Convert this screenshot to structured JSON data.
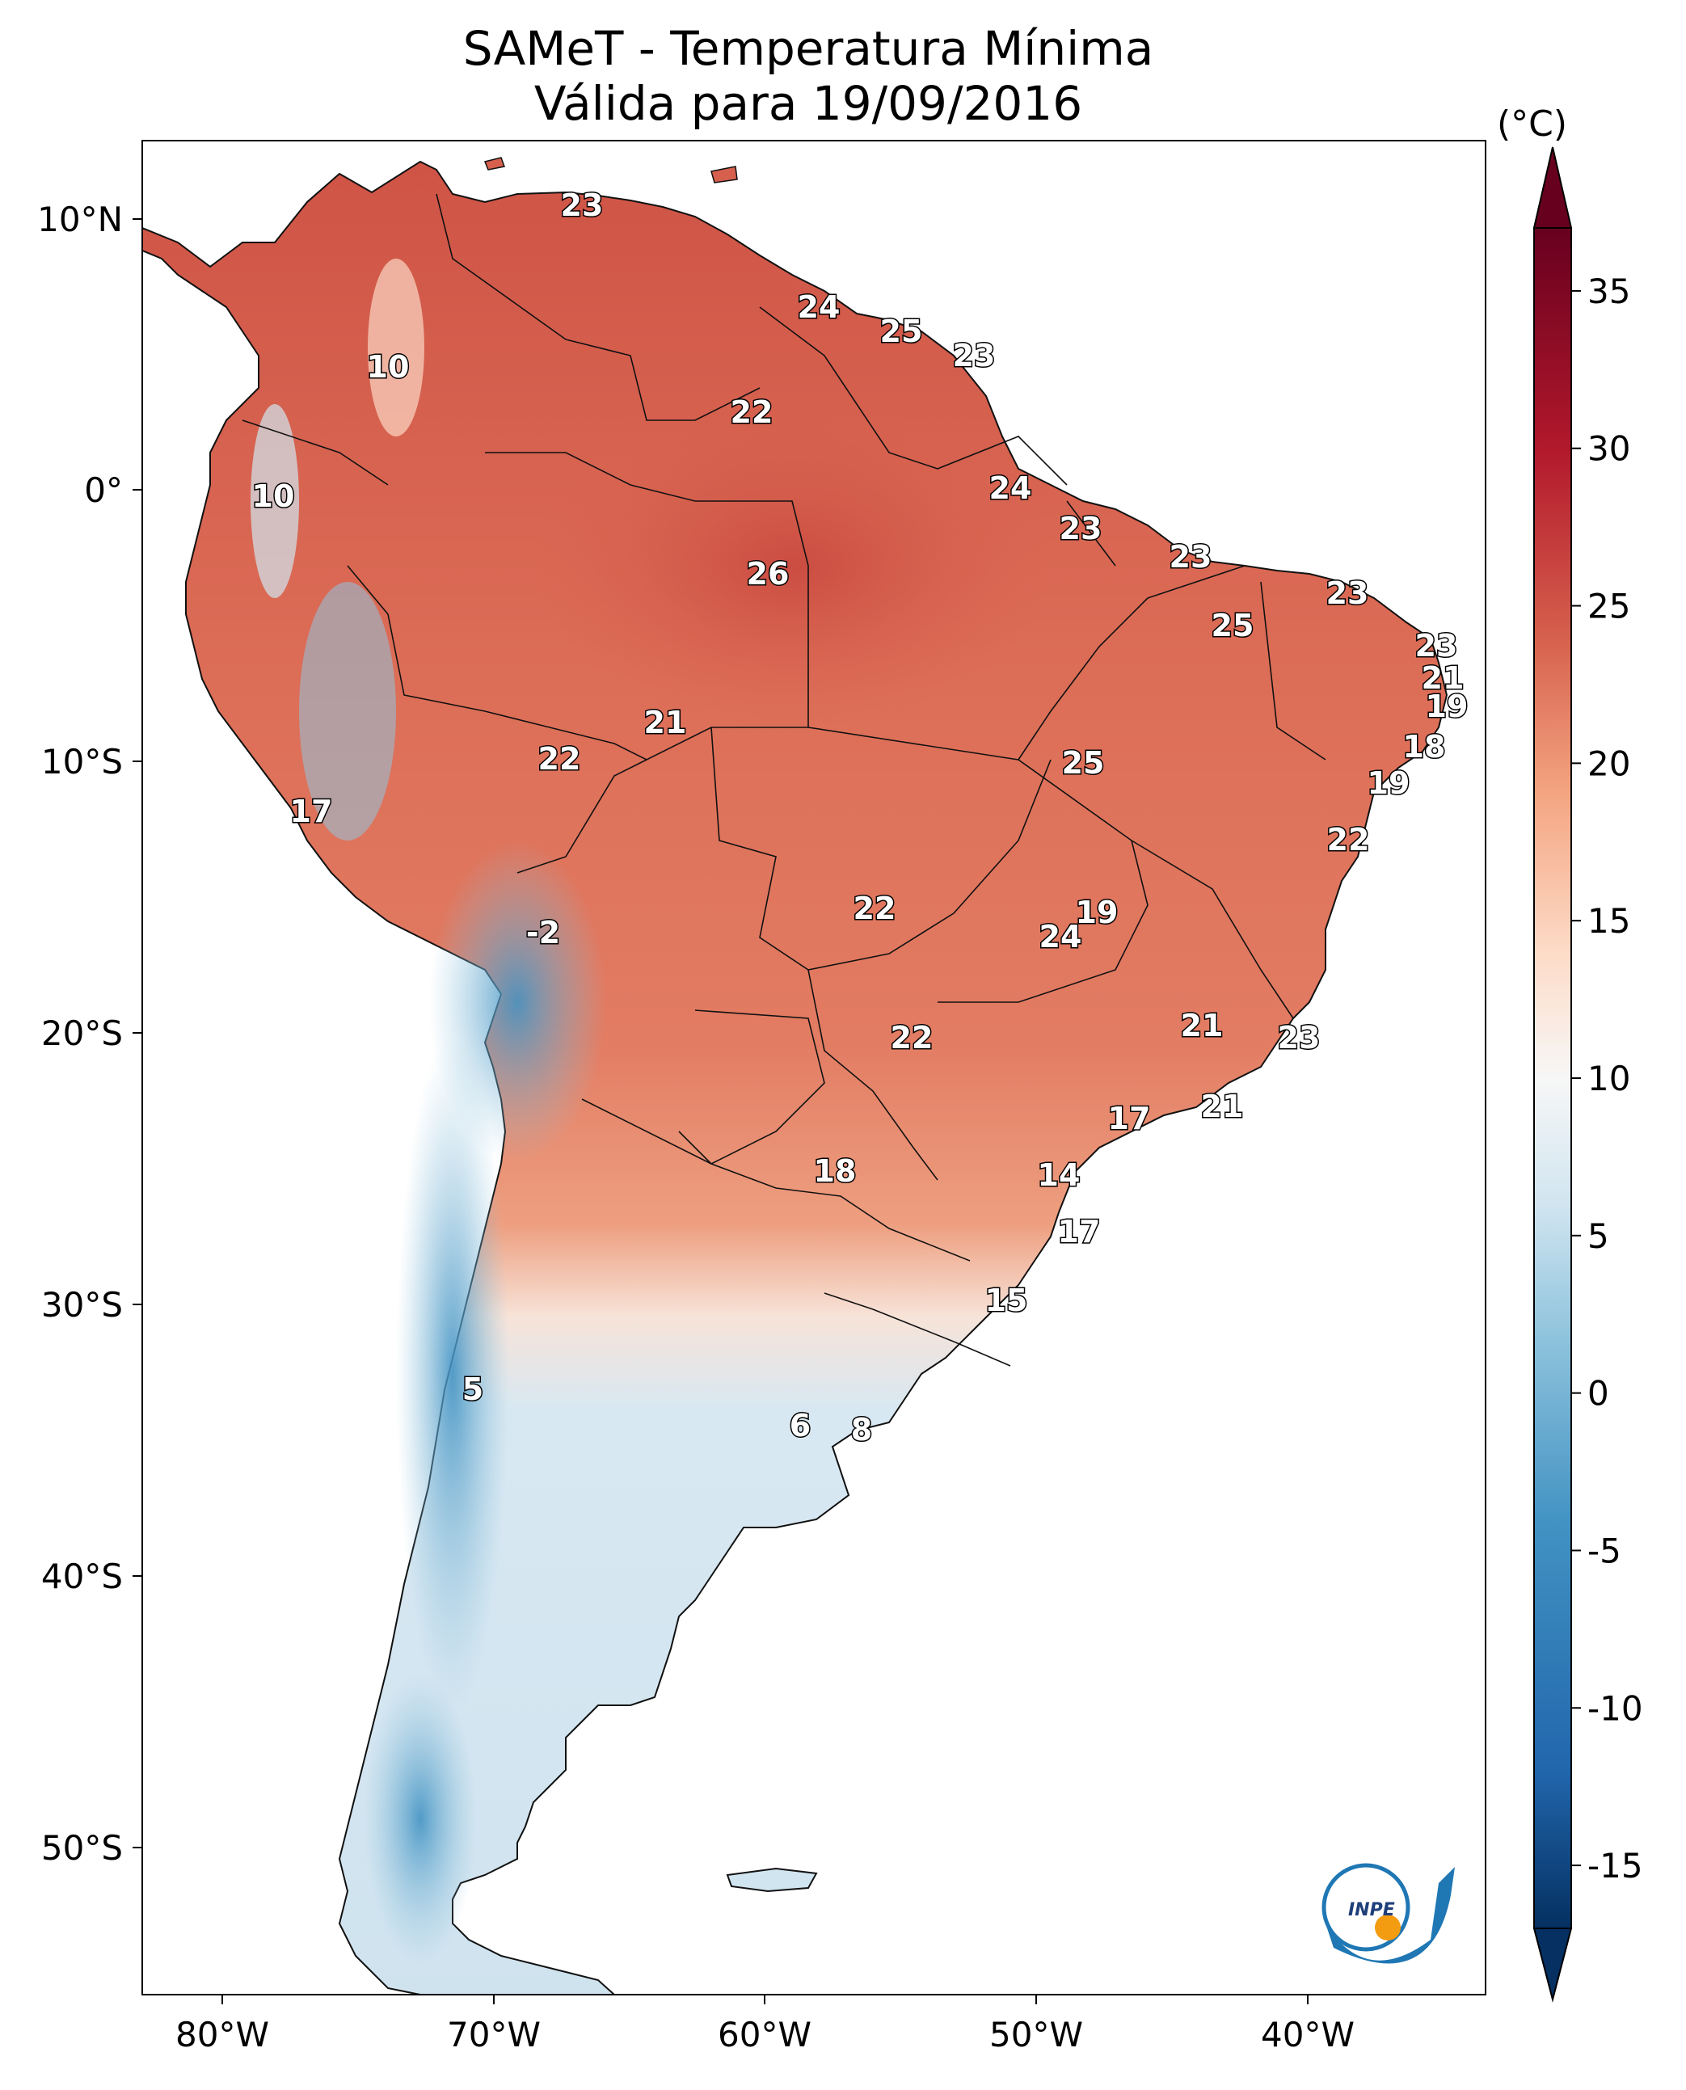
{
  "title": {
    "line1": "SAMeT - Temperatura Mínima",
    "line2": "Válida para 19/09/2016"
  },
  "colorbar": {
    "unit": "(°C)",
    "ticks": [
      "35",
      "30",
      "25",
      "20",
      "15",
      "10",
      "5",
      "0",
      "-5",
      "-10",
      "-15"
    ],
    "stops": [
      {
        "value": -17,
        "color": "#053061"
      },
      {
        "value": -12,
        "color": "#2166ac"
      },
      {
        "value": -4,
        "color": "#4393c3"
      },
      {
        "value": 2,
        "color": "#92c5de"
      },
      {
        "value": 6,
        "color": "#d1e5f0"
      },
      {
        "value": 10,
        "color": "#f7f7f7"
      },
      {
        "value": 14,
        "color": "#fddbc7"
      },
      {
        "value": 19,
        "color": "#f4a582"
      },
      {
        "value": 24,
        "color": "#d6604d"
      },
      {
        "value": 30,
        "color": "#b2182b"
      },
      {
        "value": 37,
        "color": "#67001f"
      }
    ]
  },
  "axes": {
    "lon_labels": [
      "80°W",
      "70°W",
      "60°W",
      "50°W",
      "40°W"
    ],
    "lat_labels": [
      "10°N",
      "0°",
      "10°S",
      "20°S",
      "30°S",
      "40°S",
      "50°S"
    ]
  },
  "logo": {
    "text": "INPE"
  },
  "station_labels": [
    {
      "t": "23"
    },
    {
      "t": "10"
    },
    {
      "t": "10"
    },
    {
      "t": "24"
    },
    {
      "t": "25"
    },
    {
      "t": "23"
    },
    {
      "t": "22"
    },
    {
      "t": "24"
    },
    {
      "t": "23"
    },
    {
      "t": "23"
    },
    {
      "t": "26"
    },
    {
      "t": "23"
    },
    {
      "t": "25"
    },
    {
      "t": "23"
    },
    {
      "t": "21"
    },
    {
      "t": "19"
    },
    {
      "t": "21"
    },
    {
      "t": "22"
    },
    {
      "t": "18"
    },
    {
      "t": "25"
    },
    {
      "t": "19"
    },
    {
      "t": "17"
    },
    {
      "t": "22"
    },
    {
      "t": "-2"
    },
    {
      "t": "22"
    },
    {
      "t": "19"
    },
    {
      "t": "24"
    },
    {
      "t": "21"
    },
    {
      "t": "23"
    },
    {
      "t": "22"
    },
    {
      "t": "21"
    },
    {
      "t": "17"
    },
    {
      "t": "18"
    },
    {
      "t": "14"
    },
    {
      "t": "17"
    },
    {
      "t": "15"
    },
    {
      "t": "5"
    },
    {
      "t": "6"
    },
    {
      "t": "8"
    }
  ]
}
